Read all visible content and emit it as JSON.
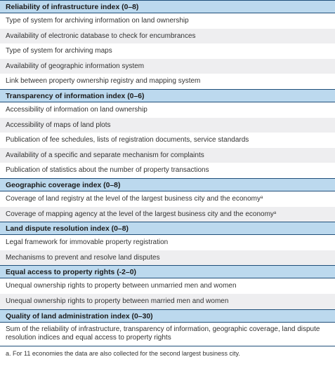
{
  "sections": [
    {
      "heading": "Reliability of infrastructure index (0–8)",
      "rows": [
        {
          "text": "Type of system for archiving information on land ownership",
          "sup": ""
        },
        {
          "text": "Availability of electronic database to check for encumbrances",
          "sup": ""
        },
        {
          "text": "Type of system for archiving maps",
          "sup": ""
        },
        {
          "text": "Availability of geographic information system",
          "sup": ""
        },
        {
          "text": "Link between property ownership registry and mapping system",
          "sup": ""
        }
      ]
    },
    {
      "heading": "Transparency of information index (0–6)",
      "rows": [
        {
          "text": "Accessibility of information on land ownership",
          "sup": ""
        },
        {
          "text": "Accessibility of maps of land plots",
          "sup": ""
        },
        {
          "text": "Publication of fee schedules, lists of registration documents, service standards",
          "sup": ""
        },
        {
          "text": "Availability of a specific and separate mechanism for complaints",
          "sup": ""
        },
        {
          "text": "Publication of statistics about the number of property transactions",
          "sup": ""
        }
      ]
    },
    {
      "heading": "Geographic coverage index (0–8)",
      "rows": [
        {
          "text": "Coverage of land registry at the level of the largest business city and the economy",
          "sup": "a"
        },
        {
          "text": "Coverage of mapping agency at the level of the largest business city and the economy",
          "sup": "a"
        }
      ]
    },
    {
      "heading": "Land dispute resolution index (0–8)",
      "rows": [
        {
          "text": "Legal framework for immovable property registration",
          "sup": ""
        },
        {
          "text": "Mechanisms to prevent and resolve land disputes",
          "sup": ""
        }
      ]
    },
    {
      "heading": "Equal access to property rights (-2–0)",
      "rows": [
        {
          "text": "Unequal ownership rights to property between unmarried men and women",
          "sup": ""
        },
        {
          "text": "Unequal ownership rights to property between married men and women",
          "sup": ""
        }
      ]
    },
    {
      "heading": "Quality of land administration index (0–30)",
      "rows": [
        {
          "text": "Sum of the reliability of infrastructure, transparency of information, geographic coverage, land dispute resolution indices and equal access to property rights",
          "sup": "",
          "wrap": true
        }
      ]
    }
  ],
  "footnote": "a. For 11 economies the data are also collected for the second largest business city.",
  "colors": {
    "heading_bg": "#bcd9ee",
    "rule": "#1f4e79",
    "row_alt_bg": "#eeeef0",
    "text": "#333333"
  }
}
